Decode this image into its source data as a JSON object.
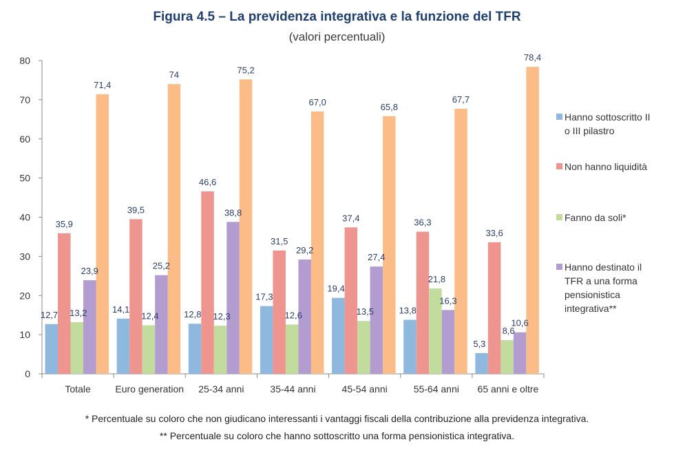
{
  "title": "Figura 4.5 – La previdenza integrativa e la funzione del TFR",
  "subtitle": "(valori percentuali)",
  "chart_data": {
    "type": "bar",
    "categories": [
      "Totale",
      "Euro generation",
      "25-34 anni",
      "35-44 anni",
      "45-54 anni",
      "55-64 anni",
      "65 anni e oltre"
    ],
    "ylim": [
      0,
      80
    ],
    "yticks": [
      "0",
      "10",
      "20",
      "30",
      "40",
      "50",
      "60",
      "70",
      "80"
    ],
    "legend_position": "right",
    "grid": false,
    "series": [
      {
        "name": "Hanno sottoscritto II o III pilastro",
        "color": "#8fb8de",
        "values": [
          12.7,
          14.1,
          12.8,
          17.3,
          19.4,
          13.8,
          5.3
        ],
        "labels": [
          "12,7",
          "14,1",
          "12,8",
          "17,3",
          "19,4",
          "13,8",
          "5,3"
        ]
      },
      {
        "name": "Non hanno liquidità",
        "color": "#ee9590",
        "values": [
          35.9,
          39.5,
          46.6,
          31.5,
          37.4,
          36.3,
          33.6
        ],
        "labels": [
          "35,9",
          "39,5",
          "46,6",
          "31,5",
          "37,4",
          "36,3",
          "33,6"
        ]
      },
      {
        "name": "Fanno da soli*",
        "color": "#c2dc9e",
        "values": [
          13.2,
          12.4,
          12.3,
          12.6,
          13.5,
          21.8,
          8.6
        ],
        "labels": [
          "13,2",
          "12,4",
          "12,3",
          "12,6",
          "13,5",
          "21,8",
          "8,6"
        ]
      },
      {
        "name": "Hanno destinato il TFR a una forma pensionistica integrativa**",
        "color": "#b39dd0",
        "values": [
          23.9,
          25.2,
          38.8,
          29.2,
          27.4,
          16.3,
          10.6
        ],
        "labels": [
          "23,9",
          "25,2",
          "38,8",
          "29,2",
          "27,4",
          "16,3",
          "10,6"
        ]
      },
      {
        "name": "",
        "color": "#fbbc88",
        "values": [
          71.4,
          74,
          75.2,
          67.0,
          65.8,
          67.7,
          78.4
        ],
        "labels": [
          "71,4",
          "74",
          "75,2",
          "67,0",
          "65,8",
          "67,7",
          "78,4"
        ]
      }
    ]
  },
  "legend": [
    {
      "lines": [
        "Hanno sottoscritto II",
        "o III pilastro"
      ],
      "color": "#8fb8de"
    },
    {
      "lines": [
        "Non hanno liquidità"
      ],
      "color": "#ee9590"
    },
    {
      "lines": [
        "Fanno da soli*"
      ],
      "color": "#c2dc9e"
    },
    {
      "lines": [
        "Hanno destinato il",
        "TFR a una forma",
        "pensionistica",
        "integrativa**"
      ],
      "color": "#b39dd0"
    }
  ],
  "notes": [
    "* Percentuale su coloro che non giudicano interessanti i vantaggi fiscali della contribuzione alla previdenza integrativa.",
    "** Percentuale su coloro che hanno sottoscritto una forma pensionistica integrativa."
  ]
}
